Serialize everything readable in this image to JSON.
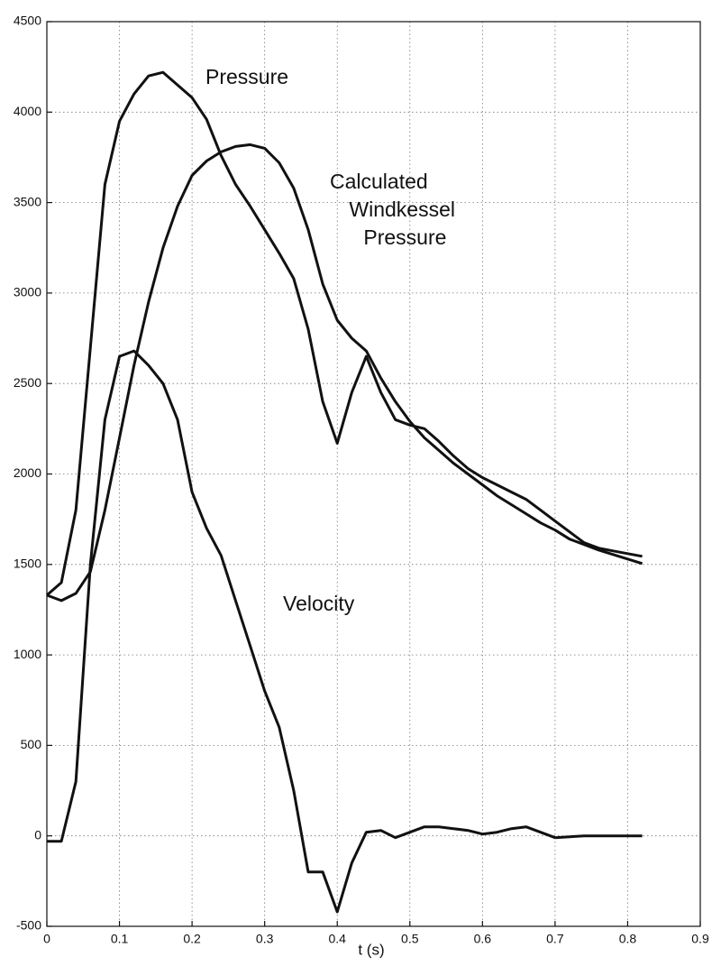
{
  "chart_data": {
    "type": "line",
    "x_label": "t (s)",
    "x": [
      0,
      0.02,
      0.04,
      0.06,
      0.08,
      0.1,
      0.12,
      0.14,
      0.16,
      0.18,
      0.2,
      0.22,
      0.24,
      0.26,
      0.28,
      0.3,
      0.32,
      0.34,
      0.36,
      0.38,
      0.4,
      0.42,
      0.44,
      0.46,
      0.48,
      0.5,
      0.52,
      0.54,
      0.56,
      0.58,
      0.6,
      0.62,
      0.64,
      0.66,
      0.68,
      0.7,
      0.72,
      0.74,
      0.76,
      0.78,
      0.8,
      0.82
    ],
    "series": [
      {
        "name": "Pressure",
        "color": "#111111",
        "values": [
          1330,
          1400,
          1800,
          2700,
          3600,
          3950,
          4100,
          4200,
          4220,
          4150,
          4080,
          3960,
          3760,
          3600,
          3480,
          3350,
          3220,
          3080,
          2800,
          2400,
          2170,
          2450,
          2650,
          2450,
          2300,
          2270,
          2250,
          2180,
          2100,
          2030,
          1980,
          1940,
          1900,
          1860,
          1800,
          1740,
          1680,
          1620,
          1590,
          1575,
          1560,
          1545
        ]
      },
      {
        "name": "Calculated Windkessel Pressure",
        "color": "#111111",
        "values": [
          1330,
          1300,
          1340,
          1460,
          1800,
          2200,
          2600,
          2950,
          3250,
          3480,
          3650,
          3730,
          3780,
          3810,
          3820,
          3800,
          3720,
          3580,
          3350,
          3050,
          2850,
          2750,
          2680,
          2530,
          2400,
          2290,
          2200,
          2130,
          2060,
          2000,
          1940,
          1880,
          1830,
          1780,
          1730,
          1690,
          1640,
          1610,
          1580,
          1555,
          1530,
          1505
        ]
      },
      {
        "name": "Velocity",
        "color": "#111111",
        "values": [
          -30,
          -30,
          300,
          1500,
          2300,
          2650,
          2680,
          2600,
          2500,
          2300,
          1900,
          1700,
          1550,
          1300,
          1050,
          800,
          600,
          250,
          -200,
          -200,
          -420,
          -150,
          20,
          30,
          -10,
          20,
          50,
          50,
          40,
          30,
          10,
          20,
          40,
          50,
          20,
          -10,
          -5,
          0,
          0,
          0,
          0,
          0
        ]
      }
    ],
    "xlim": [
      0,
      0.9
    ],
    "xticks": [
      0,
      0.1,
      0.2,
      0.3,
      0.4,
      0.5,
      0.6,
      0.7,
      0.8,
      0.9
    ],
    "ylim": [
      -500,
      4500
    ],
    "yticks": [
      -500,
      0,
      500,
      1000,
      1500,
      2000,
      2500,
      3000,
      3500,
      4000,
      4500
    ],
    "grid": true
  }
}
